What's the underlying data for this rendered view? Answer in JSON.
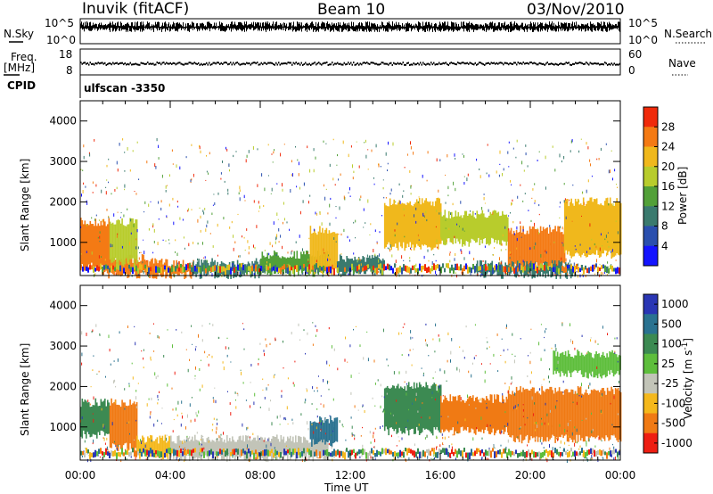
{
  "header": {
    "station": "Inuvik (fitACF)",
    "beam": "Beam 10",
    "date": "03/Nov/2010"
  },
  "top_panels": {
    "nsky_label": "N.Sky",
    "nsky_ticks": [
      "10^5",
      "10^0"
    ],
    "nsearch_label": "N.Search",
    "nsearch_ticks": [
      "10^5",
      "10^0"
    ],
    "freq_label": "Freq.",
    "freq_unit": "[MHz]",
    "freq_ticks": [
      "18",
      "8"
    ],
    "nave_label": "Nave",
    "nave_ticks": [
      "60",
      "0"
    ],
    "cpid_label": "CPID",
    "cpid_value": "ulfscan -3350"
  },
  "axes": {
    "ylabel": "Slant Range [km]",
    "xlabel": "Time UT",
    "y_ticks": [
      "4000",
      "3000",
      "2000",
      "1000"
    ],
    "x_ticks": [
      "00:00",
      "04:00",
      "08:00",
      "12:00",
      "16:00",
      "20:00",
      "00:00"
    ]
  },
  "colorbars": {
    "power_label": "Power [dB]",
    "power_ticks": [
      "28",
      "24",
      "20",
      "16",
      "12",
      "8",
      "4"
    ],
    "velocity_label_main": "Velocity [m s",
    "velocity_label_sup": "-1",
    "velocity_label_end": "]",
    "velocity_ticks": [
      "1000",
      "500",
      "100",
      "25",
      "-25",
      "-100",
      "-500",
      "-1000"
    ]
  },
  "chart_data": [
    {
      "type": "heatmap",
      "name": "power",
      "ylabel": "Slant Range [km]",
      "xlabel": "Time UT",
      "xlim": [
        0,
        24
      ],
      "ylim": [
        180,
        4500
      ],
      "colorbar_label": "Power [dB]",
      "colorbar_range": [
        0,
        30
      ],
      "colorbar_colors": [
        "#1414ff",
        "#2a4fae",
        "#3a7a6e",
        "#52a038",
        "#b8cc2c",
        "#f0b81c",
        "#f47a14",
        "#f02a0a"
      ],
      "regions": [
        {
          "x": [
            0.0,
            1.3
          ],
          "y": [
            400,
            1500
          ],
          "level": 26
        },
        {
          "x": [
            1.0,
            3.0
          ],
          "y": [
            200,
            600
          ],
          "level": 24
        },
        {
          "x": [
            3.0,
            5.0
          ],
          "y": [
            200,
            500
          ],
          "level": 26
        },
        {
          "x": [
            1.3,
            2.5
          ],
          "y": [
            500,
            1500
          ],
          "level": 16
        },
        {
          "x": [
            5.0,
            8.0
          ],
          "y": [
            200,
            500
          ],
          "level": 10
        },
        {
          "x": [
            8.0,
            11.0
          ],
          "y": [
            250,
            700
          ],
          "level": 14
        },
        {
          "x": [
            10.2,
            11.4
          ],
          "y": [
            300,
            1300
          ],
          "level": 22
        },
        {
          "x": [
            11.4,
            13.5
          ],
          "y": [
            250,
            600
          ],
          "level": 10
        },
        {
          "x": [
            13.5,
            16.0
          ],
          "y": [
            900,
            2000
          ],
          "level": 22
        },
        {
          "x": [
            16.0,
            19.0
          ],
          "y": [
            1000,
            1700
          ],
          "level": 16
        },
        {
          "x": [
            19.0,
            21.5
          ],
          "y": [
            400,
            1300
          ],
          "level": 24
        },
        {
          "x": [
            21.5,
            24.0
          ],
          "y": [
            700,
            2000
          ],
          "level": 20
        },
        {
          "x": [
            17.5,
            22.0
          ],
          "y": [
            200,
            450
          ],
          "level": 10
        }
      ]
    },
    {
      "type": "heatmap",
      "name": "velocity",
      "ylabel": "Slant Range [km]",
      "xlabel": "Time UT",
      "xlim": [
        0,
        24
      ],
      "ylim": [
        180,
        4500
      ],
      "colorbar_label": "Velocity [m s-1]",
      "colorbar_categories": [
        "1000",
        "500",
        "100",
        "25",
        "-25",
        "-100",
        "-500",
        "-1000"
      ],
      "colorbar_colors": [
        "#2a36b4",
        "#2a7290",
        "#3c8a52",
        "#5ebe3c",
        "#c2c4b8",
        "#f4b81c",
        "#f07a14",
        "#ee1e12"
      ],
      "regions": [
        {
          "x": [
            0.0,
            1.3
          ],
          "y": [
            800,
            1600
          ],
          "level": "100"
        },
        {
          "x": [
            1.3,
            2.5
          ],
          "y": [
            500,
            1600
          ],
          "level": "-500"
        },
        {
          "x": [
            2.5,
            4.0
          ],
          "y": [
            300,
            700
          ],
          "level": "-100"
        },
        {
          "x": [
            4.0,
            8.0
          ],
          "y": [
            250,
            700
          ],
          "level": "-25"
        },
        {
          "x": [
            8.0,
            11.0
          ],
          "y": [
            250,
            700
          ],
          "level": "-25"
        },
        {
          "x": [
            10.2,
            11.4
          ],
          "y": [
            600,
            1200
          ],
          "level": "500"
        },
        {
          "x": [
            13.5,
            16.0
          ],
          "y": [
            900,
            2000
          ],
          "level": "100"
        },
        {
          "x": [
            16.0,
            19.0
          ],
          "y": [
            900,
            1700
          ],
          "level": "-500"
        },
        {
          "x": [
            19.0,
            24.0
          ],
          "y": [
            700,
            1900
          ],
          "level": "-500"
        },
        {
          "x": [
            21.0,
            24.0
          ],
          "y": [
            2300,
            2800
          ],
          "level": "25"
        }
      ]
    }
  ]
}
